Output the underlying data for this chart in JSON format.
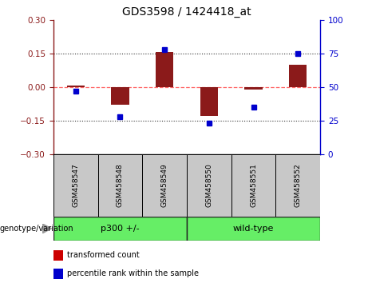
{
  "title": "GDS3598 / 1424418_at",
  "samples": [
    "GSM458547",
    "GSM458548",
    "GSM458549",
    "GSM458550",
    "GSM458551",
    "GSM458552"
  ],
  "red_values": [
    0.005,
    -0.08,
    0.155,
    -0.13,
    -0.01,
    0.1
  ],
  "blue_values": [
    47,
    28,
    78,
    23,
    35,
    75
  ],
  "ylim_left": [
    -0.3,
    0.3
  ],
  "ylim_right": [
    0,
    100
  ],
  "yticks_left": [
    -0.3,
    -0.15,
    0,
    0.15,
    0.3
  ],
  "yticks_right": [
    0,
    25,
    50,
    75,
    100
  ],
  "red_color": "#8B1A1A",
  "blue_color": "#0000CD",
  "dashed_line_color": "#FF6666",
  "dotted_line_color": "#333333",
  "bar_width": 0.4,
  "groups": [
    {
      "label": "p300 +/-",
      "indices": [
        0,
        1,
        2
      ],
      "color": "#66EE66"
    },
    {
      "label": "wild-type",
      "indices": [
        3,
        4,
        5
      ],
      "color": "#66EE66"
    }
  ],
  "legend_items": [
    {
      "label": "transformed count",
      "color": "#CC0000"
    },
    {
      "label": "percentile rank within the sample",
      "color": "#0000CC"
    }
  ],
  "genotype_label": "genotype/variation",
  "bg_color_samples": "#C8C8C8",
  "bg_color_groups": "#66EE66",
  "plot_bg": "#FFFFFF"
}
